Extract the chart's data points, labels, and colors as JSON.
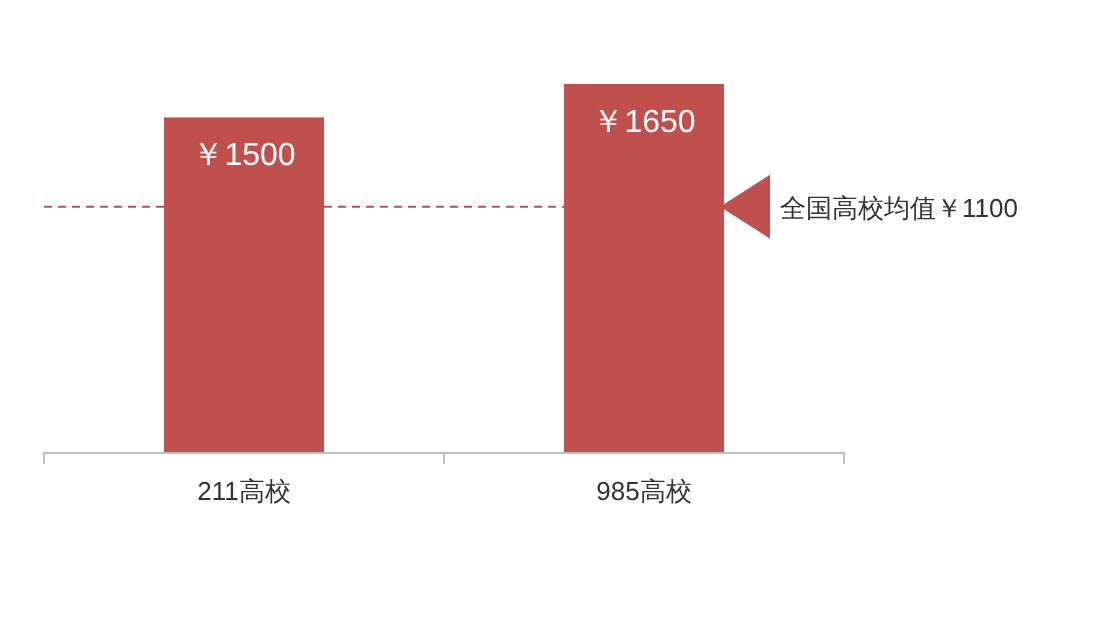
{
  "chart_data": {
    "type": "bar",
    "categories": [
      "211高校",
      "985高校"
    ],
    "values": [
      1500,
      1650
    ],
    "color": "#c0504d",
    "value_labels": [
      "￥1500",
      "￥1650"
    ],
    "ref_lines": [
      {
        "axis": "y",
        "value": 1100,
        "label": "全国高校均值￥1100",
        "color": "#c0504d",
        "line_style": "dashed"
      }
    ]
  }
}
